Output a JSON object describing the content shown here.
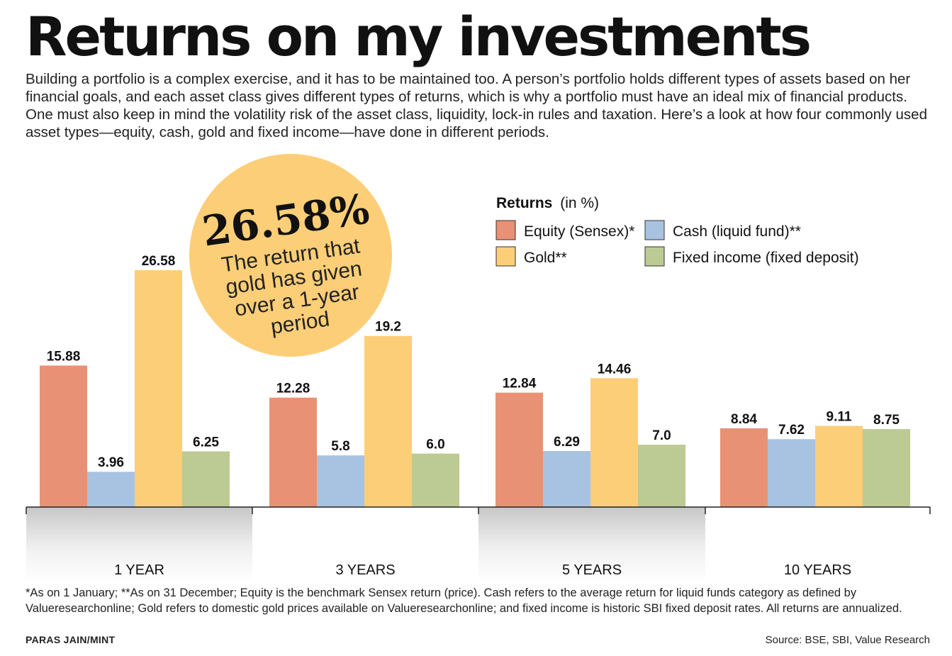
{
  "header": {
    "title": "Returns on my investments",
    "intro": "Building a portfolio is a complex exercise, and it has to be maintained too. A person’s portfolio holds different types of assets based on her financial goals, and each asset class gives different types of returns, which is why a portfolio must have an ideal mix of financial products. One must also keep in mind the volatility risk of the asset class, liquidity, lock-in rules and taxation. Here’s a look at how four commonly used asset types—equity, cash, gold and fixed income—have done in different periods."
  },
  "callout": {
    "value": "26.58%",
    "text_lines": [
      "The return that",
      "gold has given",
      "over a 1-year",
      "period"
    ],
    "color": "#FCCE77"
  },
  "chart_data": {
    "type": "bar",
    "categories": [
      "1 YEAR",
      "3 YEARS",
      "5 YEARS",
      "10 YEARS"
    ],
    "legend_title": "Returns",
    "legend_unit": "(in %)",
    "legend_position": "top-right",
    "series": [
      {
        "name": "Equity (Sensex)*",
        "color": "#E99174",
        "values": [
          15.88,
          12.28,
          12.84,
          8.84
        ],
        "labels": [
          "15.88",
          "12.28",
          "12.84",
          "8.84"
        ]
      },
      {
        "name": "Cash (liquid fund)**",
        "color": "#A8C3E1",
        "values": [
          3.96,
          5.8,
          6.29,
          7.62
        ],
        "labels": [
          "3.96",
          "5.8",
          "6.29",
          "7.62"
        ]
      },
      {
        "name": "Gold**",
        "color": "#FCCE77",
        "values": [
          26.58,
          19.2,
          14.46,
          9.11
        ],
        "labels": [
          "26.58",
          "19.2",
          "14.46",
          "9.11"
        ]
      },
      {
        "name": "Fixed income (fixed deposit)",
        "color": "#BCCA94",
        "values": [
          6.25,
          6.0,
          7.0,
          8.75
        ],
        "labels": [
          "6.25",
          "6.0",
          "7.0",
          "8.75"
        ]
      }
    ],
    "ylim": [
      0,
      26.58
    ],
    "grid": false
  },
  "footer": {
    "footnote": "*As on 1 January; **As on 31 December; Equity is the benchmark Sensex return (price). Cash refers to the average return for liquid funds category as defined by Valueresearchonline; Gold refers to domestic gold prices available on Valueresearchonline; and fixed income is historic SBI fixed deposit rates. All returns are annualized.",
    "credit": "PARAS JAIN/MINT",
    "source": "Source: BSE, SBI, Value Research"
  }
}
